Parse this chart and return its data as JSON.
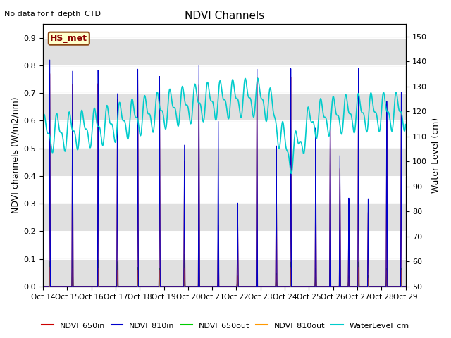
{
  "title": "NDVI Channels",
  "no_data_text": "No data for f_depth_CTD",
  "annotation_text": "HS_met",
  "ylabel_left": "NDVI channels (W/m2/nm)",
  "ylabel_right": "Water Level (cm)",
  "ylim_left": [
    0.0,
    0.95
  ],
  "ylim_right": [
    50,
    155
  ],
  "yticks_left": [
    0.0,
    0.1,
    0.2,
    0.3,
    0.4,
    0.5,
    0.6,
    0.7,
    0.8,
    0.9
  ],
  "yticks_right": [
    50,
    60,
    70,
    80,
    90,
    100,
    110,
    120,
    130,
    140,
    150
  ],
  "xtick_labels": [
    "Oct 14",
    "Oct 15",
    "Oct 16",
    "Oct 17",
    "Oct 18",
    "Oct 19",
    "Oct 20",
    "Oct 21",
    "Oct 22",
    "Oct 23",
    "Oct 24",
    "Oct 25",
    "Oct 26",
    "Oct 27",
    "Oct 28",
    "Oct 29"
  ],
  "colors": {
    "NDVI_650in": "#cc0000",
    "NDVI_810in": "#0000cc",
    "NDVI_650out": "#00cc00",
    "NDVI_810out": "#ff9900",
    "WaterLevel_cm": "#00cccc"
  },
  "plot_bg": "#ffffff",
  "band_color": "#e0e0e0",
  "legend_labels": [
    "NDVI_650in",
    "NDVI_810in",
    "NDVI_650out",
    "NDVI_810out",
    "WaterLevel_cm"
  ],
  "spike_peaks_810": [
    0.28,
    1.22,
    2.28,
    3.08,
    3.92,
    4.82,
    5.85,
    6.45,
    7.25,
    8.05,
    8.85,
    9.65,
    10.25,
    11.28,
    11.88,
    12.28,
    12.65,
    13.05,
    13.45,
    14.22,
    14.82
  ],
  "spike_heights_810": [
    0.82,
    0.81,
    0.81,
    0.7,
    0.79,
    0.8,
    0.53,
    0.8,
    0.62,
    0.32,
    0.8,
    0.52,
    0.8,
    0.61,
    0.65,
    0.5,
    0.33,
    0.8,
    0.32,
    0.71,
    0.73
  ],
  "spike_heights_650": [
    0.77,
    0.76,
    0.76,
    0.68,
    0.75,
    0.73,
    0.47,
    0.73,
    0.23,
    0.3,
    0.77,
    0.5,
    0.77,
    0.48,
    0.6,
    0.45,
    0.27,
    0.77,
    0.27,
    0.64,
    0.65
  ],
  "spike_heights_650out": [
    0.09,
    0.1,
    0.1,
    0.09,
    0.07,
    0.07,
    0.12,
    0.08,
    0.01,
    0.04,
    0.08,
    0.05,
    0.09,
    0.07,
    0.08,
    0.05,
    0.04,
    0.09,
    0.04,
    0.07,
    0.07
  ],
  "spike_heights_810out": [
    0.07,
    0.07,
    0.07,
    0.06,
    0.06,
    0.06,
    0.07,
    0.06,
    0.01,
    0.04,
    0.06,
    0.04,
    0.07,
    0.05,
    0.06,
    0.04,
    0.03,
    0.07,
    0.03,
    0.06,
    0.06
  ]
}
